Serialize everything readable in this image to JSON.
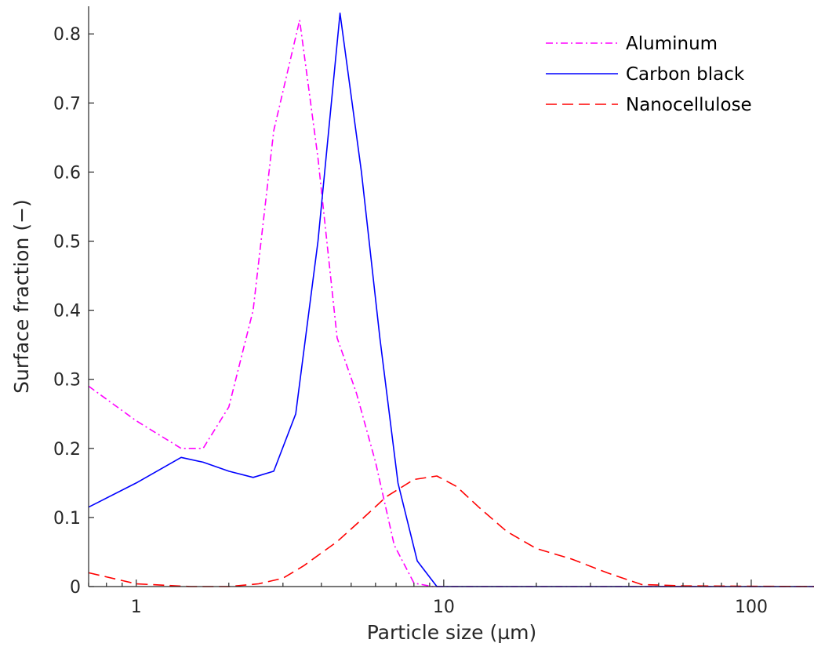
{
  "chart_data": {
    "type": "line",
    "xlabel": "Particle size (µm)",
    "ylabel": "Surface fraction (−)",
    "xscale": "log",
    "xlim": [
      0.7,
      160
    ],
    "ylim": [
      0,
      0.84
    ],
    "grid": false,
    "legend_position": "top-right",
    "x_ticks": [
      1,
      10,
      100
    ],
    "x_tick_labels": [
      "1",
      "10",
      "100"
    ],
    "y_ticks": [
      0,
      0.1,
      0.2,
      0.3,
      0.4,
      0.5,
      0.6,
      0.7,
      0.8
    ],
    "y_tick_labels": [
      "0",
      "0.1",
      "0.2",
      "0.3",
      "0.4",
      "0.5",
      "0.6",
      "0.7",
      "0.8"
    ],
    "series": [
      {
        "name": "Aluminum",
        "color": "#ff00ff",
        "dash": "dashdot",
        "x": [
          0.7,
          1.0,
          1.4,
          1.65,
          2.0,
          2.4,
          2.8,
          3.4,
          3.9,
          4.5,
          5.2,
          6.0,
          6.9,
          8.0,
          9.2,
          10.5,
          20,
          50,
          160
        ],
        "y": [
          0.29,
          0.24,
          0.2,
          0.2,
          0.26,
          0.4,
          0.66,
          0.82,
          0.62,
          0.36,
          0.28,
          0.18,
          0.06,
          0.005,
          0,
          0,
          0,
          0,
          0
        ]
      },
      {
        "name": "Carbon black",
        "color": "#0000ff",
        "dash": "solid",
        "x": [
          0.7,
          1.0,
          1.4,
          1.65,
          2.0,
          2.4,
          2.8,
          3.3,
          3.9,
          4.6,
          5.4,
          6.2,
          7.1,
          8.2,
          9.5,
          11,
          20,
          50,
          160
        ],
        "y": [
          0.115,
          0.15,
          0.187,
          0.18,
          0.167,
          0.158,
          0.167,
          0.25,
          0.5,
          0.83,
          0.6,
          0.36,
          0.15,
          0.037,
          0,
          0,
          0,
          0,
          0
        ]
      },
      {
        "name": "Nanocellulose",
        "color": "#ff0000",
        "dash": "dashed",
        "x": [
          0.7,
          1.0,
          1.5,
          2.0,
          2.5,
          3.0,
          3.5,
          4.5,
          5.5,
          6.5,
          8.0,
          9.5,
          11,
          13,
          16,
          20,
          26,
          34,
          44,
          60,
          160
        ],
        "y": [
          0.02,
          0.004,
          0,
          0,
          0.004,
          0.012,
          0.03,
          0.065,
          0.1,
          0.13,
          0.155,
          0.16,
          0.145,
          0.115,
          0.08,
          0.055,
          0.04,
          0.02,
          0.003,
          0.001,
          0
        ]
      }
    ]
  }
}
